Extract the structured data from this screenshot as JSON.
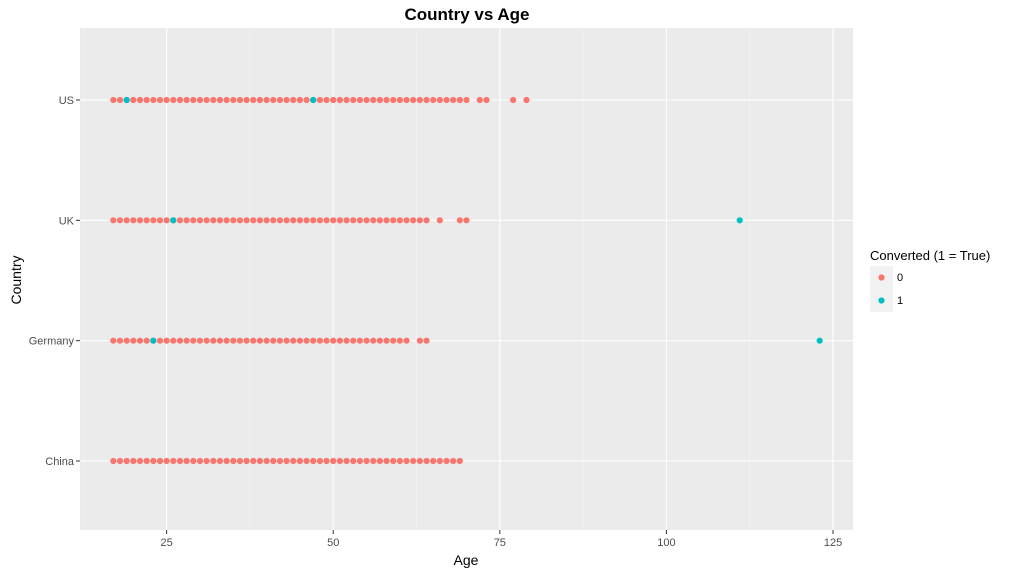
{
  "chart_data": {
    "type": "scatter",
    "title": "Country vs Age",
    "xlabel": "Age",
    "ylabel": "Country",
    "xlim": [
      12,
      128
    ],
    "x_ticks": [
      25,
      50,
      75,
      100,
      125
    ],
    "categories": [
      "China",
      "Germany",
      "UK",
      "US"
    ],
    "grid": true,
    "legend": {
      "title": "Converted (1 = True)",
      "placement": "right",
      "entries": [
        {
          "label": "0",
          "color": "#F8766D"
        },
        {
          "label": "1",
          "color": "#00BFC4"
        }
      ]
    },
    "series": [
      {
        "name": "0",
        "color": "#F8766D",
        "points": {
          "China": {
            "range": [
              17,
              67
            ],
            "extra": [
              68,
              69
            ]
          },
          "Germany": {
            "range": [
              17,
              61
            ],
            "extra": [
              63,
              64
            ]
          },
          "UK": {
            "range": [
              17,
              64
            ],
            "extra": [
              66,
              69,
              70
            ]
          },
          "US": {
            "range": [
              17,
              70
            ],
            "extra": [
              72,
              73,
              77,
              79
            ]
          }
        }
      },
      {
        "name": "1",
        "color": "#00BFC4",
        "points": {
          "China": [],
          "Germany": [
            23,
            123
          ],
          "UK": [
            26,
            111
          ],
          "US": [
            19,
            47
          ]
        }
      }
    ]
  }
}
